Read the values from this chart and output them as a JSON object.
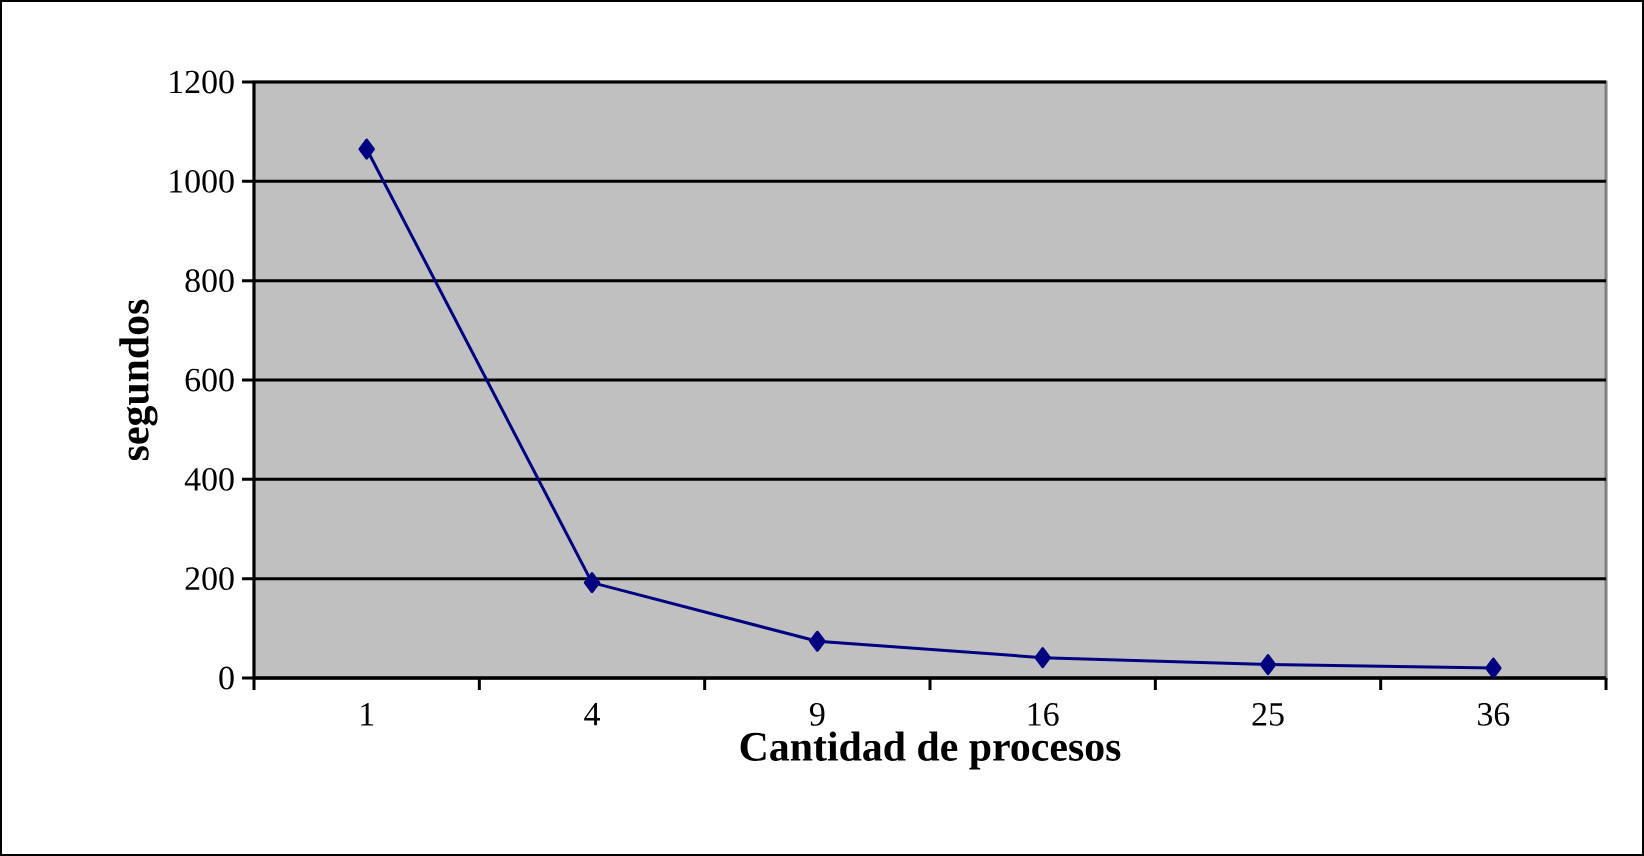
{
  "chart_data": {
    "type": "line",
    "xlabel": "Cantidad de procesos",
    "ylabel": "segundos",
    "categories": [
      "1",
      "4",
      "9",
      "16",
      "25",
      "36"
    ],
    "series": [
      {
        "color": "#000080",
        "values": [
          1065,
          192,
          74,
          41,
          27,
          20
        ]
      }
    ],
    "ylim": [
      0,
      1200
    ],
    "yticks": [
      0,
      200,
      400,
      600,
      800,
      1000,
      1200
    ],
    "grid": "y",
    "marker": "diamond",
    "line_style": "solid"
  }
}
